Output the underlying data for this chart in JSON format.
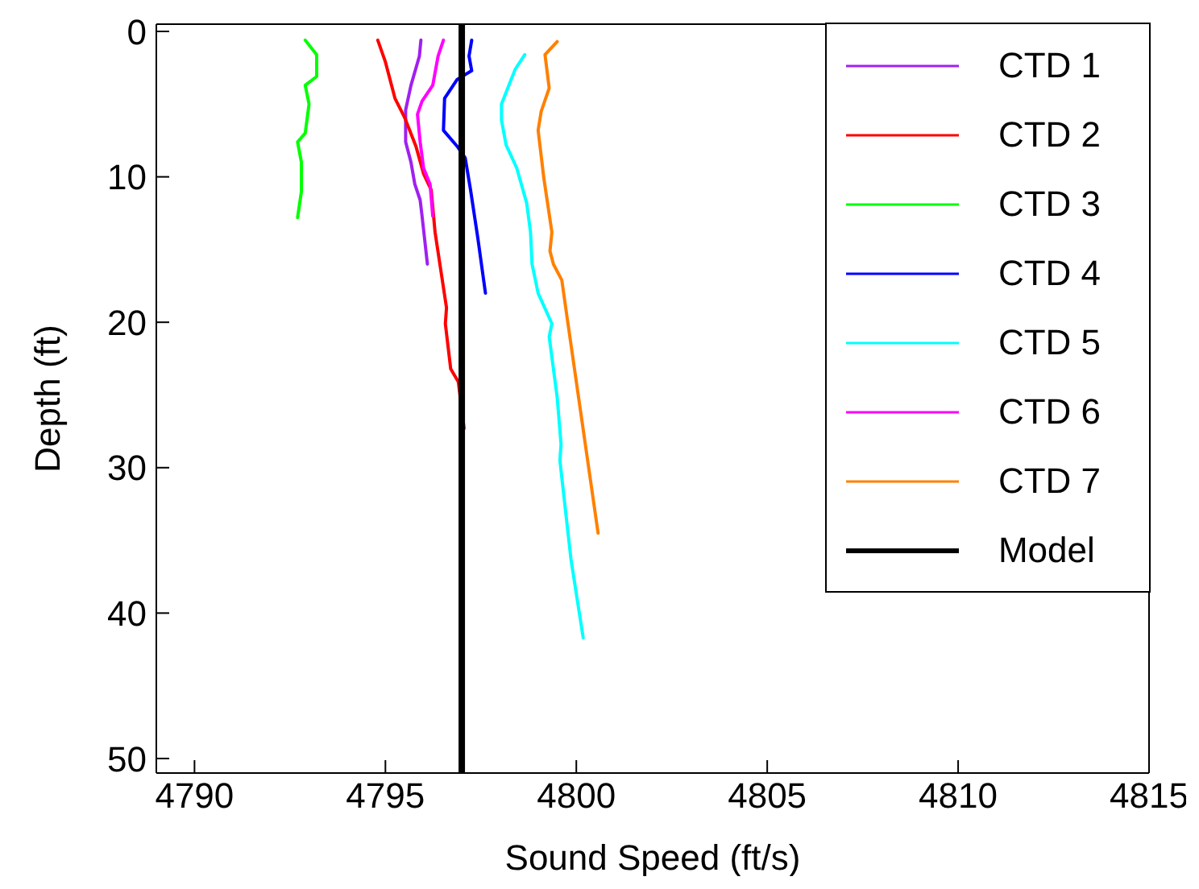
{
  "chart_data": {
    "type": "line",
    "xlabel": "Sound Speed (ft/s)",
    "ylabel": "Depth (ft)",
    "xlim": [
      4789,
      4815
    ],
    "xticks": [
      4790,
      4795,
      4800,
      4805,
      4810,
      4815
    ],
    "ylim": [
      51,
      -0.5
    ],
    "yticks": [
      0,
      10,
      20,
      30,
      40,
      50
    ],
    "legend": "top right",
    "marker": "none",
    "line_style": "solid",
    "series": [
      {
        "name": "CTD 1",
        "color": "#a020f0",
        "x": [
          4795.93,
          4795.89,
          4795.67,
          4795.53,
          4795.53,
          4795.67,
          4795.77,
          4795.91,
          4795.96,
          4796.1
        ],
        "values": [
          0.6,
          1.7,
          3.7,
          5.4,
          7.6,
          9,
          10.5,
          11.6,
          12.7,
          16
        ]
      },
      {
        "name": "CTD 2",
        "color": "#ff0000",
        "x": [
          4794.8,
          4795.0,
          4795.25,
          4795.5,
          4795.8,
          4796.0,
          4796.2,
          4796.3,
          4796.45,
          4796.6,
          4796.57,
          4796.71,
          4796.91,
          4797.06
        ],
        "values": [
          0.6,
          2.1,
          4.6,
          5.9,
          7.9,
          9.8,
          10.9,
          13.8,
          16.4,
          19,
          20.1,
          23.2,
          24.1,
          27.3
        ]
      },
      {
        "name": "CTD 3",
        "color": "#00ff00",
        "x": [
          4792.9,
          4793.2,
          4793.2,
          4792.9,
          4793.0,
          4792.9,
          4792.7,
          4792.8,
          4792.8,
          4792.7
        ],
        "values": [
          0.6,
          1.6,
          3.1,
          3.7,
          5,
          7,
          7.6,
          9,
          11,
          12.8
        ]
      },
      {
        "name": "CTD 4",
        "color": "#0000ff",
        "x": [
          4797.26,
          4797.19,
          4797.26,
          4796.88,
          4796.55,
          4796.52,
          4796.88,
          4797.09,
          4797.23,
          4797.42,
          4797.62
        ],
        "values": [
          0.6,
          1.7,
          2.7,
          3.3,
          4.6,
          6.8,
          7.9,
          8.7,
          10.9,
          14.2,
          18
        ]
      },
      {
        "name": "CTD 5",
        "color": "#00ffff",
        "x": [
          4798.65,
          4798.4,
          4798.04,
          4798.04,
          4798.16,
          4798.44,
          4798.7,
          4798.8,
          4798.84,
          4799.0,
          4799.36,
          4799.29,
          4799.5,
          4799.6,
          4799.57,
          4799.86,
          4800.18
        ],
        "values": [
          1.6,
          2.6,
          5,
          6.1,
          7.8,
          9.4,
          11.8,
          13.8,
          16,
          18,
          20.1,
          21,
          25.2,
          28.4,
          29.5,
          36.3,
          41.7
        ]
      },
      {
        "name": "CTD 6",
        "color": "#ff00ff",
        "x": [
          4796.52,
          4796.38,
          4796.24,
          4795.96,
          4795.84,
          4795.91,
          4796.0,
          4796.17,
          4796.24
        ],
        "values": [
          0.6,
          1.7,
          3.7,
          4.8,
          5.7,
          7.6,
          9.4,
          10.5,
          12.7
        ]
      },
      {
        "name": "CTD 7",
        "color": "#ff8000",
        "x": [
          4799.5,
          4799.18,
          4799.29,
          4799.08,
          4799.0,
          4799.15,
          4799.36,
          4799.31,
          4799.4,
          4799.62,
          4799.76,
          4800.57
        ],
        "values": [
          0.7,
          1.6,
          3.9,
          5.5,
          6.8,
          10.1,
          13.8,
          15.1,
          16,
          17.1,
          19.7,
          34.5
        ]
      },
      {
        "name": "Model",
        "color": "#000000",
        "x": [
          4797,
          4797
        ],
        "values": [
          -0.5,
          51
        ]
      }
    ]
  }
}
